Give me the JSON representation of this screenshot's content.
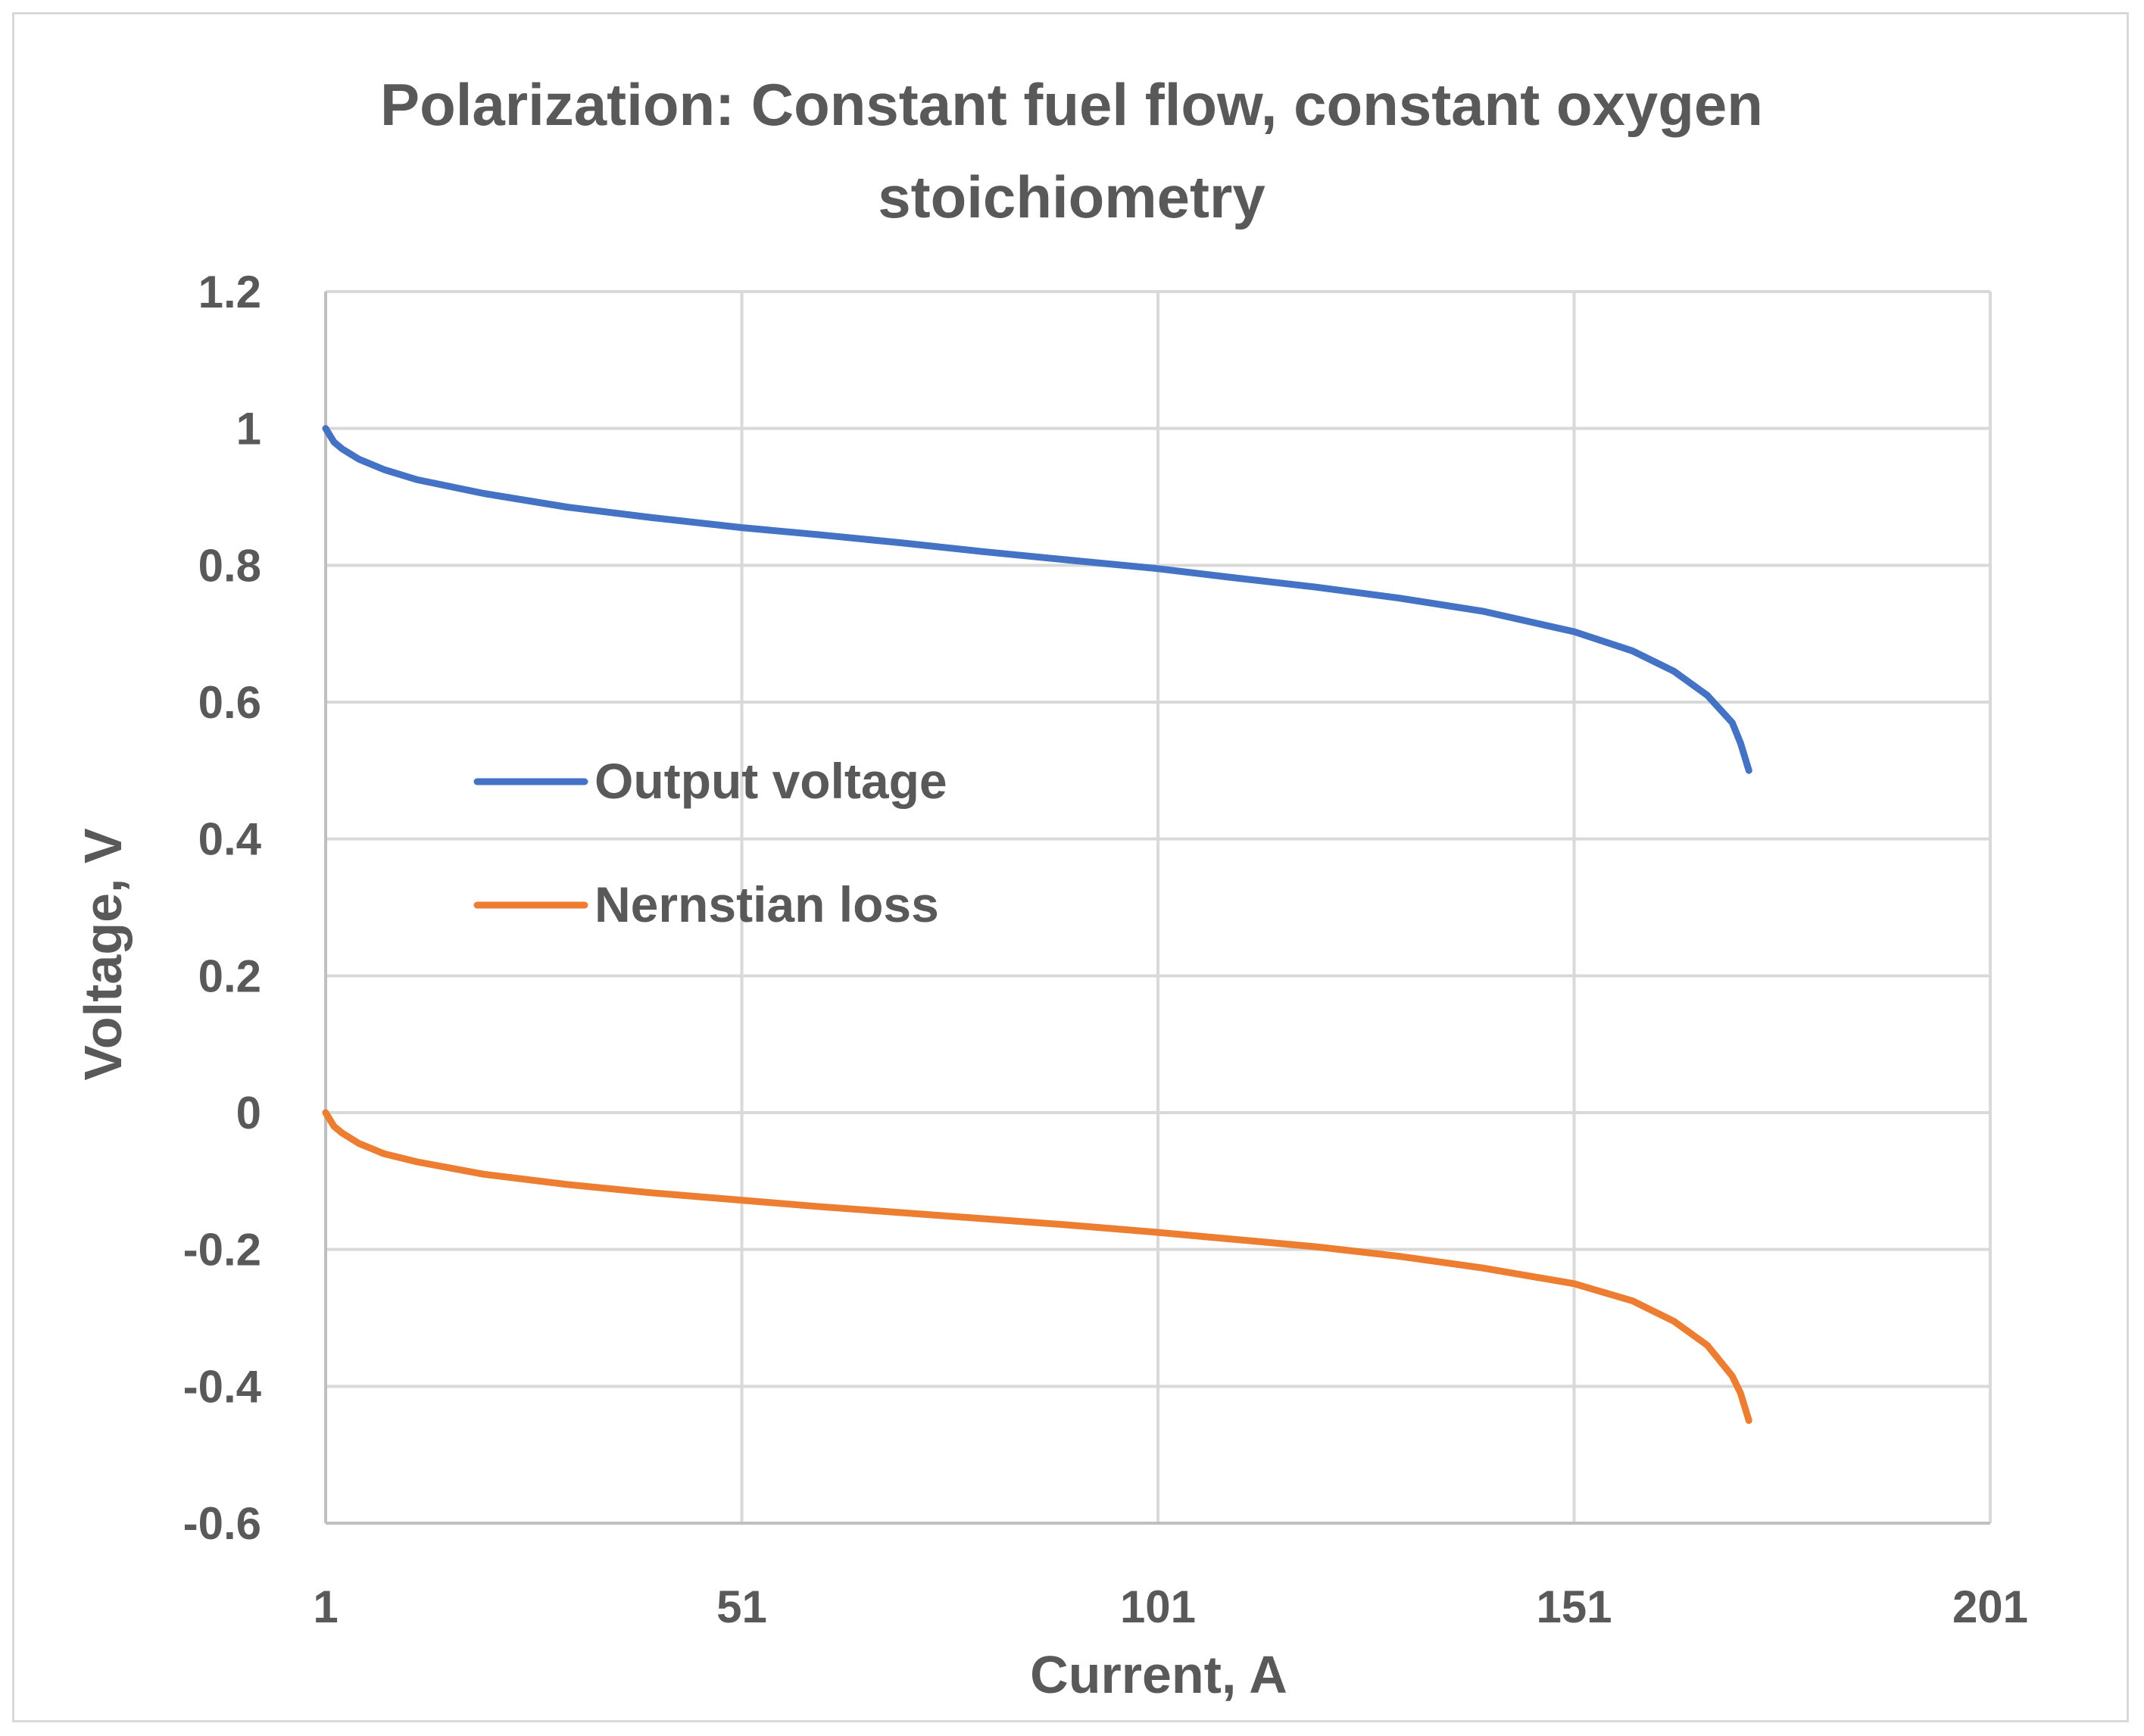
{
  "chart_data": {
    "type": "line",
    "title_lines": [
      "Polarization: Constant fuel flow, constant oxygen",
      "stoichiometry"
    ],
    "xlabel": "Current, A",
    "ylabel": "Voltage, V",
    "xlim": [
      1,
      201
    ],
    "ylim": [
      -0.6,
      1.2
    ],
    "x_ticks": [
      1,
      51,
      101,
      151,
      201
    ],
    "y_ticks": [
      1.2,
      1,
      0.8,
      0.6,
      0.4,
      0.2,
      0,
      -0.2,
      -0.4,
      -0.6
    ],
    "y_tick_labels": [
      "1.2",
      "1",
      "0.8",
      "0.6",
      "0.4",
      "0.2",
      "0",
      "-0.2",
      "-0.4",
      "-0.6"
    ],
    "grid": true,
    "legend_position": "center-left",
    "series": [
      {
        "name": "Output voltage",
        "color": "#4472c4",
        "x": [
          1,
          2,
          3,
          5,
          8,
          12,
          20,
          30,
          40,
          51,
          60,
          70,
          80,
          90,
          101,
          110,
          120,
          130,
          140,
          151,
          158,
          163,
          167,
          170,
          171,
          172
        ],
        "y": [
          1.0,
          0.98,
          0.97,
          0.955,
          0.94,
          0.925,
          0.905,
          0.885,
          0.87,
          0.855,
          0.845,
          0.833,
          0.82,
          0.808,
          0.795,
          0.782,
          0.768,
          0.752,
          0.733,
          0.703,
          0.675,
          0.645,
          0.61,
          0.57,
          0.54,
          0.5
        ]
      },
      {
        "name": "Nernstian loss",
        "color": "#ed7d31",
        "x": [
          1,
          2,
          3,
          5,
          8,
          12,
          20,
          30,
          40,
          51,
          60,
          70,
          80,
          90,
          101,
          110,
          120,
          130,
          140,
          151,
          158,
          163,
          167,
          170,
          171,
          172
        ],
        "y": [
          0.0,
          -0.02,
          -0.03,
          -0.045,
          -0.06,
          -0.072,
          -0.09,
          -0.105,
          -0.117,
          -0.128,
          -0.137,
          -0.146,
          -0.155,
          -0.164,
          -0.175,
          -0.185,
          -0.196,
          -0.21,
          -0.227,
          -0.25,
          -0.275,
          -0.305,
          -0.34,
          -0.385,
          -0.41,
          -0.45
        ]
      }
    ]
  }
}
